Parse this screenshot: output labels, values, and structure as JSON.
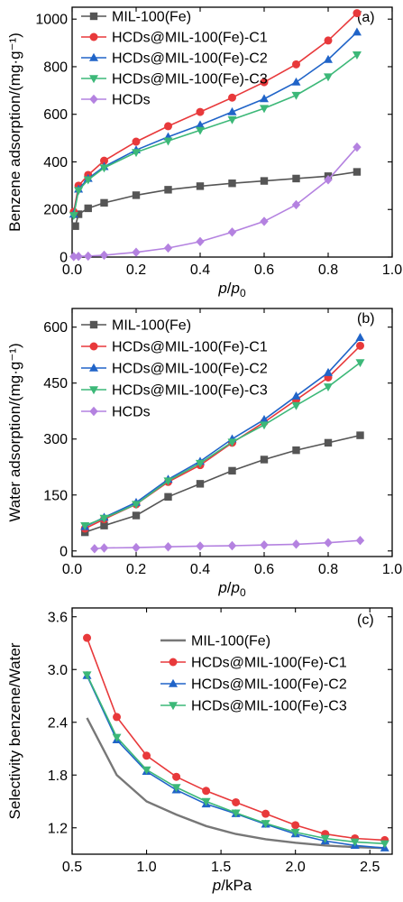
{
  "chart_data": [
    {
      "type": "line",
      "panel_label": "(a)",
      "xlabel": "p/p0",
      "ylabel": "Benzene adsorption/(mg·g⁻¹)",
      "xlim": [
        0.0,
        1.0
      ],
      "ylim": [
        0,
        1050
      ],
      "xticks": [
        0.0,
        0.2,
        0.4,
        0.6,
        0.8,
        1.0
      ],
      "xtick_labels": [
        "0.0",
        "0.2",
        "0.4",
        "0.6",
        "0.8",
        "1.0"
      ],
      "yticks": [
        0,
        200,
        400,
        600,
        800,
        1000
      ],
      "ytick_labels": [
        "0",
        "200",
        "400",
        "600",
        "800",
        "1000"
      ],
      "legend_position": "top-left",
      "series": [
        {
          "name": "MIL-100(Fe)",
          "color": "#555555",
          "marker": "square",
          "x": [
            0.01,
            0.02,
            0.05,
            0.1,
            0.2,
            0.3,
            0.4,
            0.5,
            0.6,
            0.7,
            0.8,
            0.89
          ],
          "y": [
            130,
            180,
            205,
            228,
            260,
            283,
            298,
            310,
            320,
            330,
            340,
            358
          ]
        },
        {
          "name": "HCDs@MIL-100(Fe)-C1",
          "color": "#e8393b",
          "marker": "circle",
          "x": [
            0.005,
            0.02,
            0.05,
            0.1,
            0.2,
            0.3,
            0.4,
            0.5,
            0.6,
            0.7,
            0.8,
            0.89
          ],
          "y": [
            190,
            300,
            345,
            405,
            485,
            550,
            610,
            670,
            735,
            810,
            910,
            1025
          ]
        },
        {
          "name": "HCDs@MIL-100(Fe)-C2",
          "color": "#2064c8",
          "marker": "triangle-up",
          "x": [
            0.005,
            0.02,
            0.05,
            0.1,
            0.2,
            0.3,
            0.4,
            0.5,
            0.6,
            0.7,
            0.8,
            0.89
          ],
          "y": [
            180,
            285,
            330,
            380,
            450,
            505,
            555,
            610,
            665,
            735,
            830,
            945
          ]
        },
        {
          "name": "HCDs@MIL-100(Fe)-C3",
          "color": "#3cb878",
          "marker": "triangle-down",
          "x": [
            0.005,
            0.02,
            0.05,
            0.1,
            0.2,
            0.3,
            0.4,
            0.5,
            0.6,
            0.7,
            0.8,
            0.89
          ],
          "y": [
            175,
            280,
            325,
            375,
            440,
            488,
            533,
            578,
            625,
            680,
            758,
            850
          ]
        },
        {
          "name": "HCDs",
          "color": "#b482e0",
          "marker": "diamond",
          "x": [
            0.005,
            0.02,
            0.05,
            0.1,
            0.2,
            0.3,
            0.4,
            0.5,
            0.6,
            0.7,
            0.8,
            0.89
          ],
          "y": [
            2,
            3,
            4,
            8,
            20,
            38,
            65,
            105,
            150,
            220,
            325,
            462
          ]
        }
      ]
    },
    {
      "type": "line",
      "panel_label": "(b)",
      "xlabel": "p/p0",
      "ylabel": "Water adsorption/(mg·g⁻¹)",
      "xlim": [
        0.0,
        1.0
      ],
      "ylim": [
        -15,
        650
      ],
      "xticks": [
        0.0,
        0.2,
        0.4,
        0.6,
        0.8,
        1.0
      ],
      "xtick_labels": [
        "0.0",
        "0.2",
        "0.4",
        "0.6",
        "0.8",
        "1.0"
      ],
      "yticks": [
        0,
        150,
        300,
        450,
        600
      ],
      "ytick_labels": [
        "0",
        "150",
        "300",
        "450",
        "600"
      ],
      "legend_position": "top-left",
      "series": [
        {
          "name": "MIL-100(Fe)",
          "color": "#555555",
          "marker": "square",
          "x": [
            0.04,
            0.1,
            0.2,
            0.3,
            0.4,
            0.5,
            0.6,
            0.7,
            0.8,
            0.9
          ],
          "y": [
            50,
            68,
            95,
            145,
            180,
            215,
            245,
            270,
            290,
            310
          ]
        },
        {
          "name": "HCDs@MIL-100(Fe)-C1",
          "color": "#e8393b",
          "marker": "circle",
          "x": [
            0.04,
            0.1,
            0.2,
            0.3,
            0.4,
            0.5,
            0.6,
            0.7,
            0.8,
            0.9
          ],
          "y": [
            60,
            85,
            125,
            185,
            230,
            290,
            345,
            405,
            465,
            550
          ]
        },
        {
          "name": "HCDs@MIL-100(Fe)-C2",
          "color": "#2064c8",
          "marker": "triangle-up",
          "x": [
            0.04,
            0.1,
            0.2,
            0.3,
            0.4,
            0.5,
            0.6,
            0.7,
            0.8,
            0.9
          ],
          "y": [
            65,
            90,
            130,
            192,
            240,
            300,
            352,
            415,
            478,
            572
          ]
        },
        {
          "name": "HCDs@MIL-100(Fe)-C3",
          "color": "#3cb878",
          "marker": "triangle-down",
          "x": [
            0.04,
            0.1,
            0.2,
            0.3,
            0.4,
            0.5,
            0.6,
            0.7,
            0.8,
            0.9
          ],
          "y": [
            68,
            88,
            125,
            188,
            235,
            292,
            338,
            390,
            440,
            505
          ]
        },
        {
          "name": "HCDs",
          "color": "#b482e0",
          "marker": "diamond",
          "x": [
            0.07,
            0.1,
            0.2,
            0.3,
            0.4,
            0.5,
            0.6,
            0.7,
            0.8,
            0.9
          ],
          "y": [
            6,
            8,
            9,
            11,
            13,
            14,
            16,
            18,
            22,
            28
          ]
        }
      ]
    },
    {
      "type": "line",
      "panel_label": "(c)",
      "xlabel": "p/kPa",
      "ylabel": "Selectivity benzene/Water",
      "xlim": [
        0.5,
        2.65
      ],
      "ylim": [
        0.9,
        3.7
      ],
      "xticks": [
        0.5,
        1.0,
        1.5,
        2.0,
        2.5
      ],
      "xtick_labels": [
        "0.5",
        "1.0",
        "1.5",
        "2.0",
        "2.5"
      ],
      "yticks": [
        1.2,
        1.8,
        2.4,
        3.0,
        3.6
      ],
      "ytick_labels": [
        "1.2",
        "1.8",
        "2.4",
        "3.0",
        "3.6"
      ],
      "legend_position": "top-right",
      "series": [
        {
          "name": "MIL-100(Fe)",
          "color": "#777777",
          "marker": "none",
          "x": [
            0.6,
            0.8,
            1.0,
            1.2,
            1.4,
            1.6,
            1.8,
            2.0,
            2.2,
            2.4,
            2.6
          ],
          "y": [
            2.45,
            1.8,
            1.5,
            1.35,
            1.22,
            1.13,
            1.07,
            1.03,
            1.0,
            0.98,
            0.97
          ]
        },
        {
          "name": "HCDs@MIL-100(Fe)-C1",
          "color": "#e8393b",
          "marker": "circle",
          "x": [
            0.6,
            0.8,
            1.0,
            1.2,
            1.4,
            1.6,
            1.8,
            2.0,
            2.2,
            2.4,
            2.6
          ],
          "y": [
            3.36,
            2.46,
            2.02,
            1.78,
            1.62,
            1.49,
            1.36,
            1.23,
            1.13,
            1.08,
            1.06
          ]
        },
        {
          "name": "HCDs@MIL-100(Fe)-C2",
          "color": "#2064c8",
          "marker": "triangle-up",
          "x": [
            0.6,
            0.8,
            1.0,
            1.2,
            1.4,
            1.6,
            1.8,
            2.0,
            2.2,
            2.4,
            2.6
          ],
          "y": [
            2.93,
            2.2,
            1.84,
            1.63,
            1.47,
            1.36,
            1.24,
            1.13,
            1.05,
            1.0,
            0.97
          ]
        },
        {
          "name": "HCDs@MIL-100(Fe)-C3",
          "color": "#3cb878",
          "marker": "triangle-down",
          "x": [
            0.6,
            0.8,
            1.0,
            1.2,
            1.4,
            1.6,
            1.8,
            2.0,
            2.2,
            2.4,
            2.6
          ],
          "y": [
            2.94,
            2.23,
            1.86,
            1.66,
            1.5,
            1.37,
            1.25,
            1.15,
            1.08,
            1.04,
            1.02
          ]
        }
      ]
    }
  ]
}
